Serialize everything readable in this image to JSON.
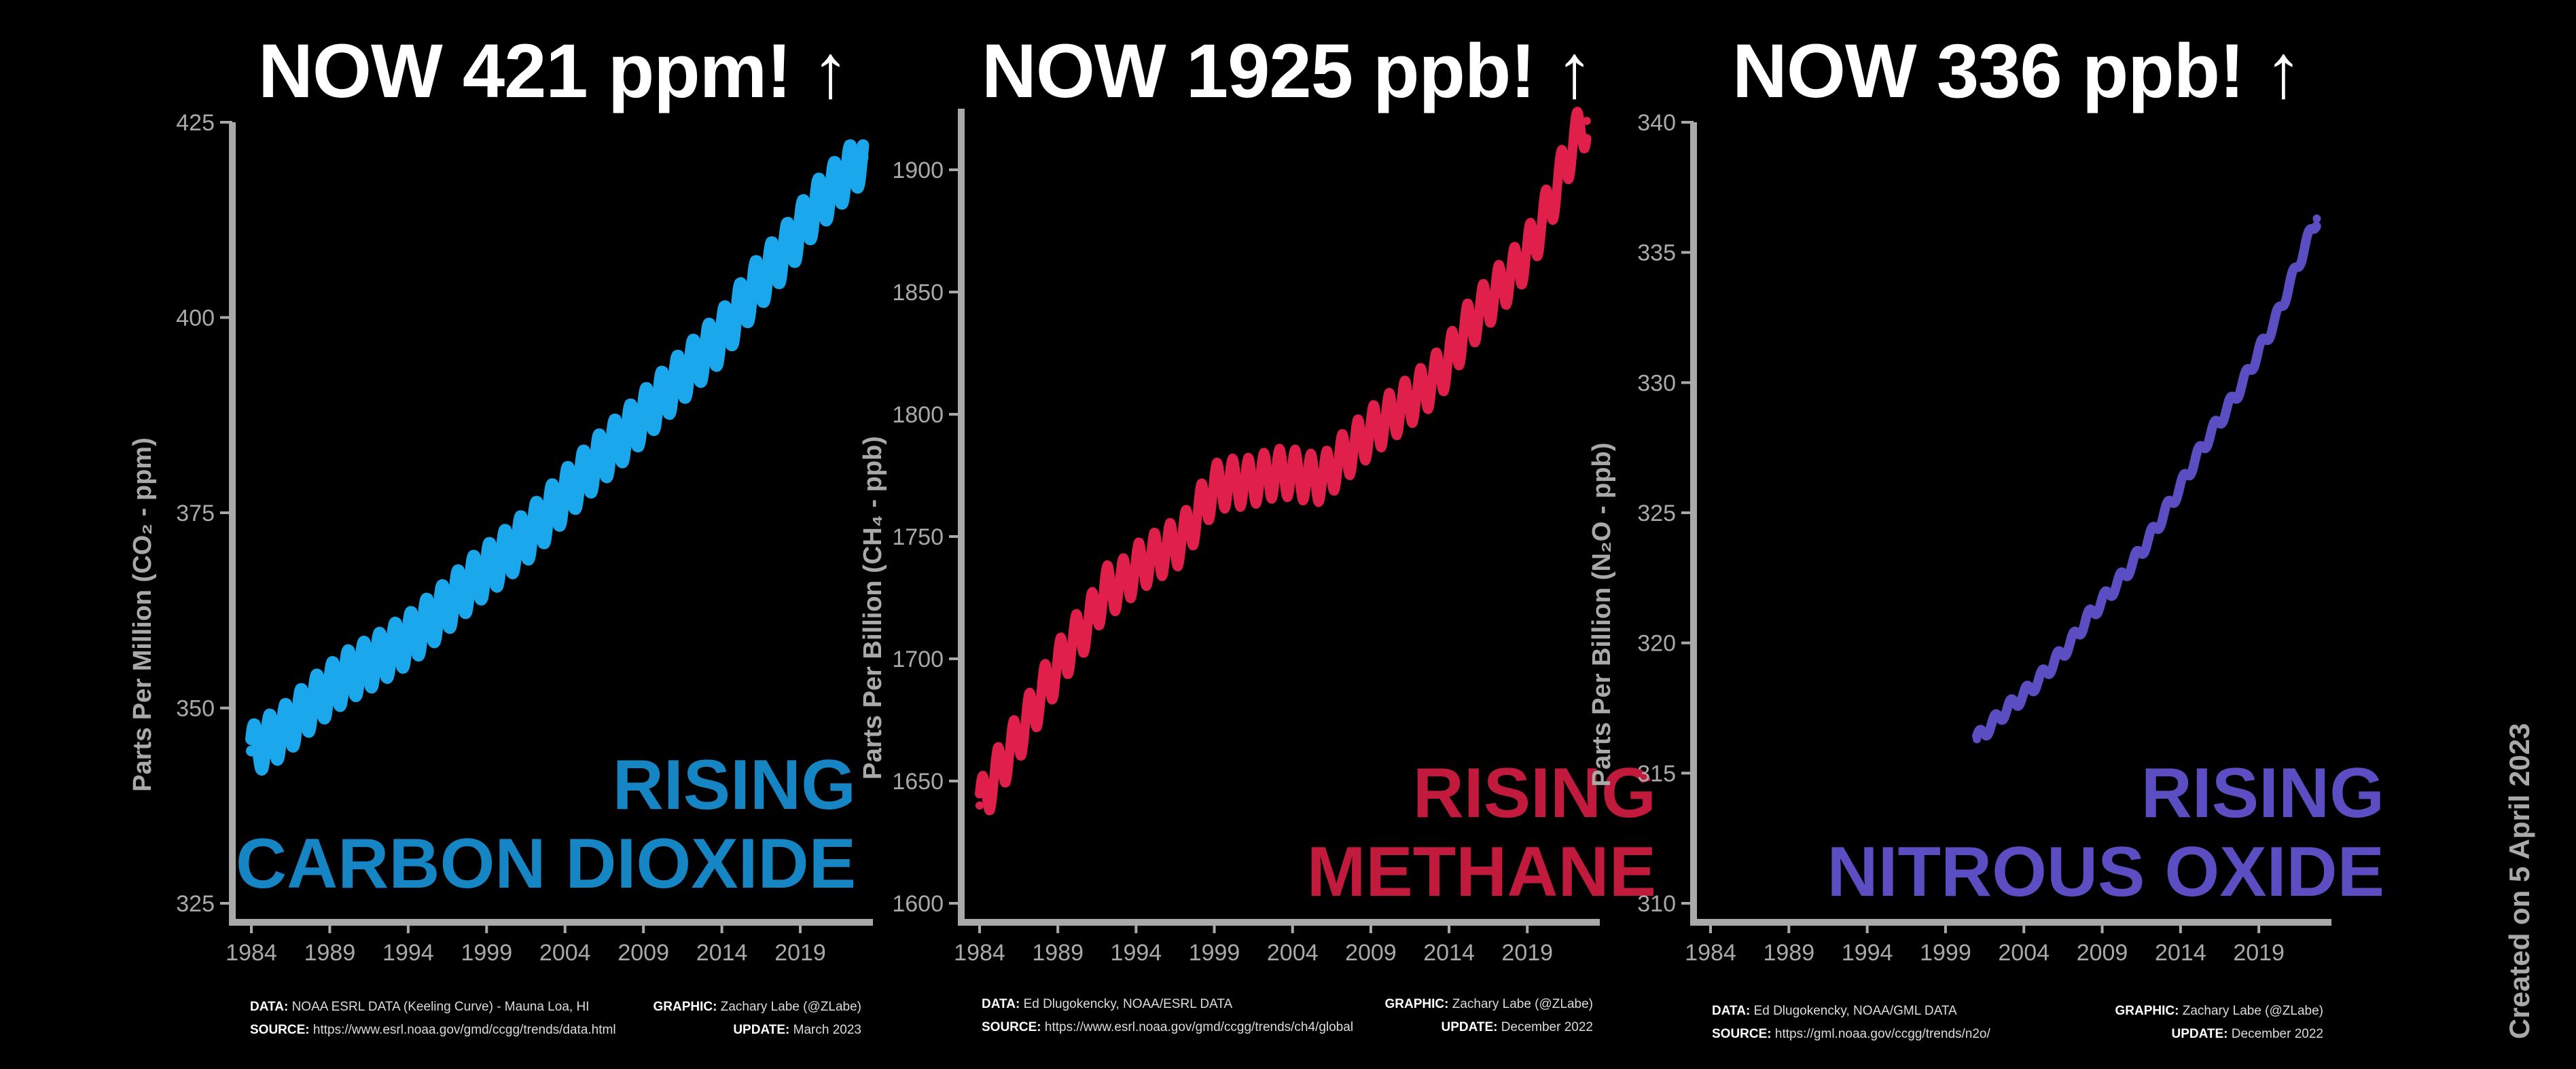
{
  "panels": [
    {
      "headline": "NOW 421 ppm! ↑",
      "rising_line1": "RISING",
      "rising_line2": "CARBON DIOXIDE",
      "data_label": "DATA:",
      "data_text": "NOAA ESRL DATA (Keeling Curve) - Mauna Loa, HI",
      "source_label": "SOURCE:",
      "source_text": "https://www.esrl.noaa.gov/gmd/ccgg/trends/data.html",
      "graphic_label": "GRAPHIC:",
      "graphic_text": "Zachary Labe (@ZLabe)",
      "update_label": "UPDATE:",
      "update_text": "March 2023"
    },
    {
      "headline": "NOW 1925 ppb! ↑",
      "rising_line1": "RISING",
      "rising_line2": "METHANE",
      "data_label": "DATA:",
      "data_text": "Ed Dlugokencky, NOAA/ESRL DATA",
      "source_label": "SOURCE:",
      "source_text": "https://www.esrl.noaa.gov/gmd/ccgg/trends/ch4/global",
      "graphic_label": "GRAPHIC:",
      "graphic_text": "Zachary Labe (@ZLabe)",
      "update_label": "UPDATE:",
      "update_text": "December 2022"
    },
    {
      "headline": "NOW 336 ppb! ↑",
      "rising_line1": "RISING",
      "rising_line2": "NITROUS OXIDE",
      "data_label": "DATA:",
      "data_text": "Ed Dlugokencky, NOAA/GML DATA",
      "source_label": "SOURCE:",
      "source_text": "https://gml.noaa.gov/ccgg/trends/n2o/",
      "graphic_label": "GRAPHIC:",
      "graphic_text": "Zachary Labe (@ZLabe)",
      "update_label": "UPDATE:",
      "update_text": "December 2022"
    }
  ],
  "created_note": "Created on 5 April 2023",
  "chart_data": [
    {
      "type": "line",
      "ylabel": "Parts Per Million (CO₂ - ppm)",
      "xlim": [
        1984,
        2023.2
      ],
      "ylim": [
        325,
        425
      ],
      "xticks": [
        1984,
        1989,
        1994,
        1999,
        2004,
        2009,
        2014,
        2019
      ],
      "yticks": [
        325,
        350,
        375,
        400,
        425
      ],
      "color": "#1aa7ec",
      "grid": false,
      "seasonal_amplitude": 3.2,
      "series": [
        {
          "x": [
            1984.0,
            1986,
            1988,
            1990,
            1992,
            1994,
            1996,
            1998,
            2000,
            2002,
            2004,
            2006,
            2008,
            2010,
            2012,
            2014,
            2016,
            2018,
            2020,
            2022,
            2023.0
          ],
          "y": [
            344.5,
            347.0,
            350.8,
            354.0,
            356.2,
            358.8,
            362.2,
            366.0,
            369.3,
            372.8,
            377.3,
            381.5,
            385.3,
            389.5,
            393.6,
            397.7,
            403.6,
            408.4,
            414.2,
            418.5,
            420.5
          ]
        }
      ]
    },
    {
      "type": "line",
      "ylabel": "Parts Per Billion (CH₄ - ppb)",
      "xlim": [
        1984,
        2023.2
      ],
      "ylim": [
        1600,
        1925
      ],
      "xticks": [
        1984,
        1989,
        1994,
        1999,
        2004,
        2009,
        2014,
        2019
      ],
      "yticks": [
        1600,
        1650,
        1700,
        1750,
        1800,
        1850,
        1900
      ],
      "color": "#e0204a",
      "grid": false,
      "seasonal_amplitude": 10,
      "series": [
        {
          "x": [
            1984.0,
            1985,
            1986,
            1987,
            1988,
            1989,
            1990,
            1991,
            1992,
            1993,
            1994,
            1995,
            1996,
            1997,
            1998,
            1999,
            2000,
            2001,
            2002,
            2003,
            2004,
            2005,
            2006,
            2007,
            2008,
            2009,
            2010,
            2011,
            2012,
            2013,
            2014,
            2015,
            2016,
            2017,
            2018,
            2019,
            2020,
            2021,
            2022,
            2022.8
          ],
          "y": [
            1640,
            1652,
            1663,
            1674,
            1686,
            1697,
            1707,
            1715,
            1728,
            1730,
            1737,
            1741,
            1745,
            1749,
            1760,
            1770,
            1772,
            1772,
            1774,
            1776,
            1776,
            1774,
            1774,
            1781,
            1787,
            1793,
            1798,
            1803,
            1808,
            1814,
            1822,
            1834,
            1842,
            1850,
            1857,
            1866,
            1879,
            1895,
            1912,
            1920
          ]
        }
      ]
    },
    {
      "type": "line",
      "ylabel": "Parts Per Billion (N₂O - ppb)",
      "xlim": [
        1984,
        2023.2
      ],
      "ylim": [
        310,
        340
      ],
      "xticks": [
        1984,
        1989,
        1994,
        1999,
        2004,
        2009,
        2014,
        2019
      ],
      "yticks": [
        310,
        315,
        320,
        325,
        330,
        335,
        340
      ],
      "color": "#5b4ec2",
      "grid": false,
      "seasonal_amplitude": 0.25,
      "series": [
        {
          "x": [
            2001.0,
            2002,
            2003,
            2004,
            2005,
            2006,
            2007,
            2008,
            2009,
            2010,
            2011,
            2012,
            2013,
            2014,
            2015,
            2016,
            2017,
            2018,
            2019,
            2020,
            2021,
            2022,
            2022.7
          ],
          "y": [
            316.3,
            316.9,
            317.5,
            318.0,
            318.6,
            319.3,
            320.0,
            320.9,
            321.6,
            322.3,
            323.1,
            324.0,
            325.0,
            326.0,
            327.1,
            328.1,
            329.0,
            330.0,
            331.2,
            332.3,
            333.8,
            335.3,
            336.3
          ]
        }
      ]
    }
  ]
}
